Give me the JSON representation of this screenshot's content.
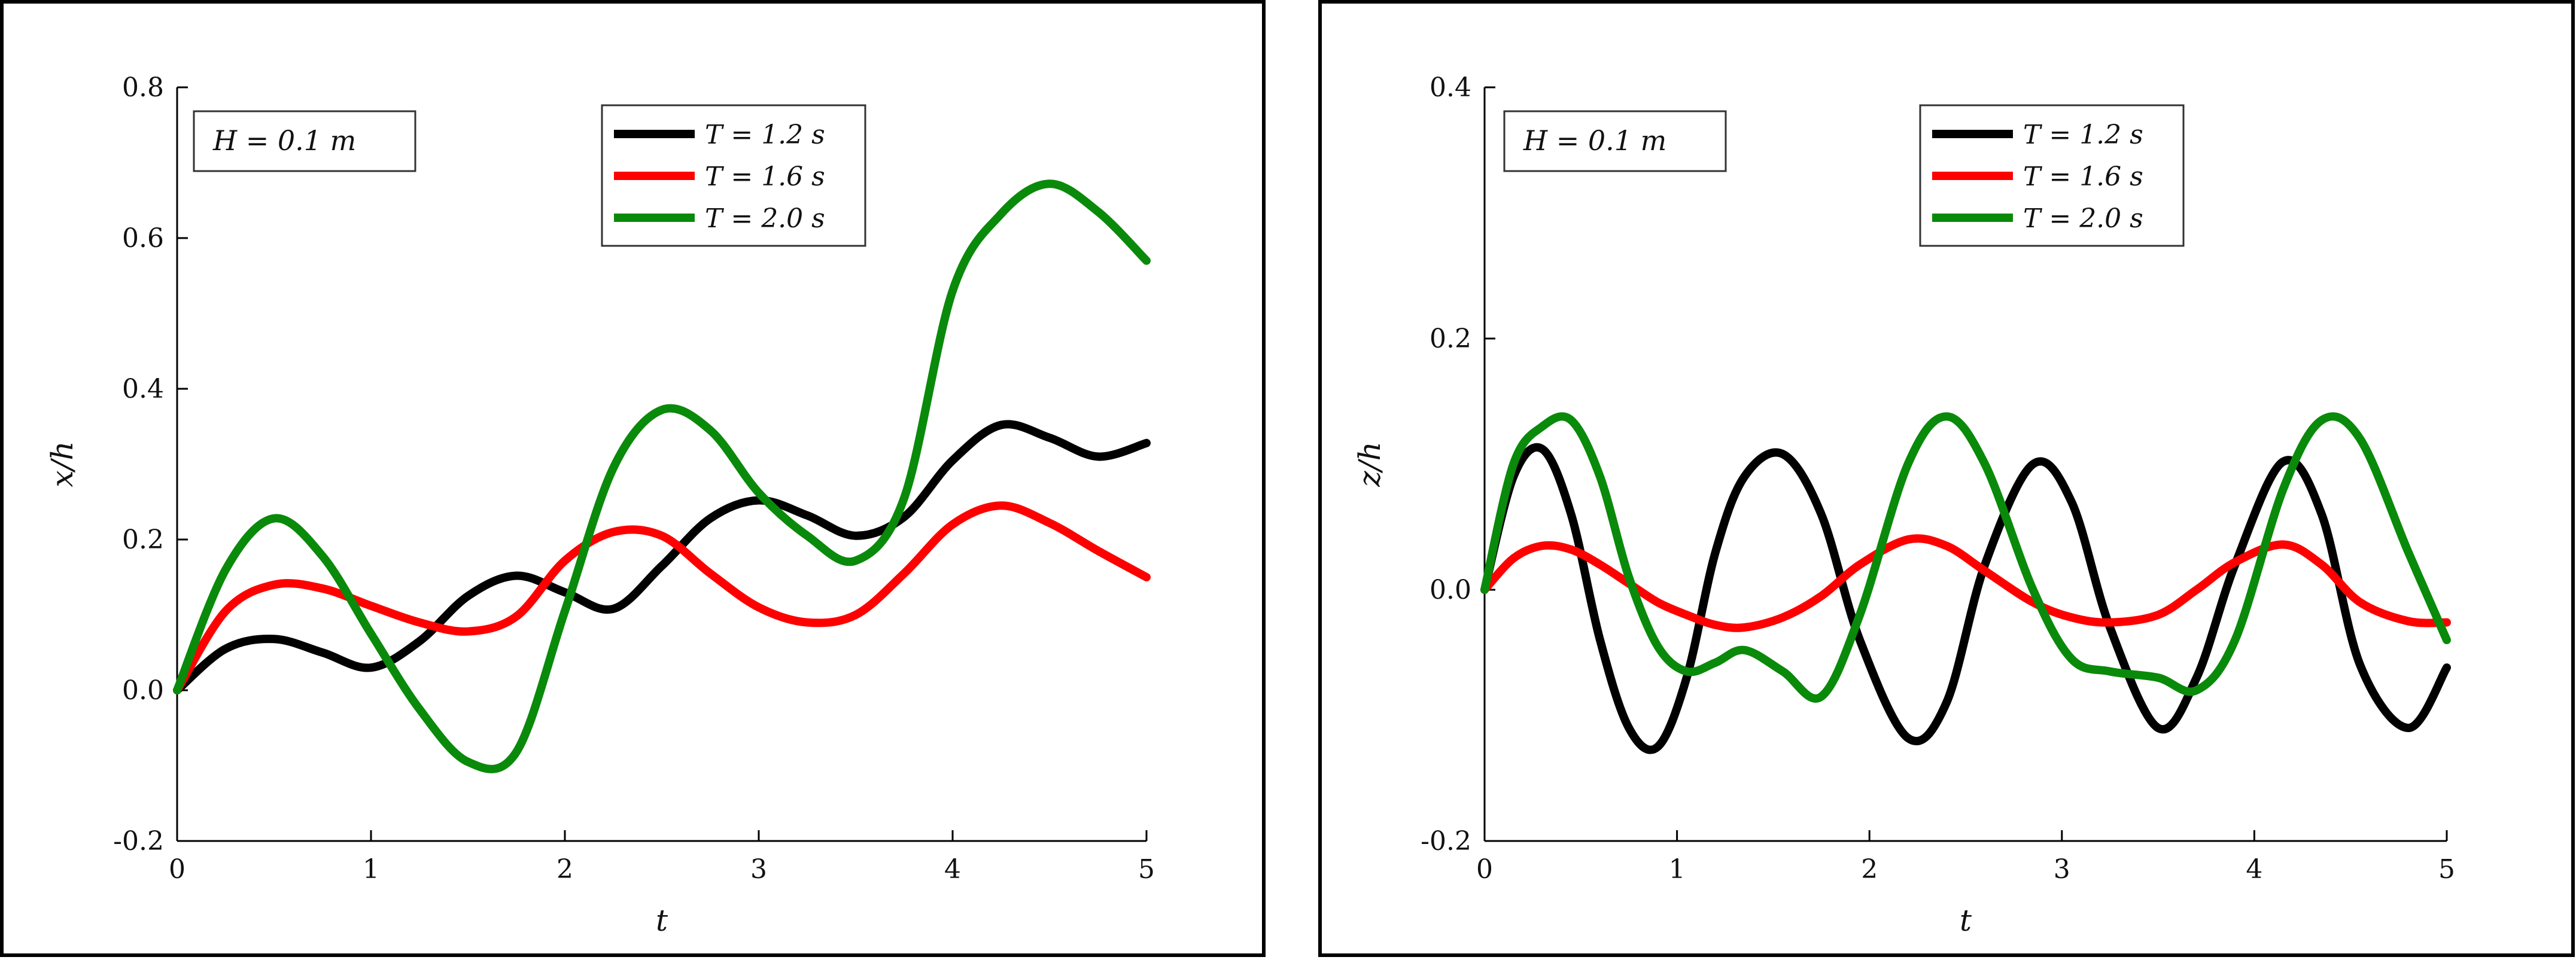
{
  "chart_data": [
    {
      "type": "line",
      "title": "",
      "xlabel": "t",
      "ylabel": "x/h",
      "xlim": [
        0,
        5
      ],
      "ylim": [
        -0.2,
        0.8
      ],
      "xticks": [
        "0",
        "1",
        "2",
        "3",
        "4",
        "5"
      ],
      "yticks": [
        "-0.2",
        "0.0",
        "0.2",
        "0.4",
        "0.6",
        "0.8"
      ],
      "grid": false,
      "legend_position": "top-center",
      "annotation": "H = 0.1 m",
      "x": [
        0,
        0.25,
        0.5,
        0.75,
        1.0,
        1.25,
        1.5,
        1.75,
        2.0,
        2.25,
        2.5,
        2.75,
        3.0,
        3.25,
        3.5,
        3.75,
        4.0,
        4.25,
        4.5,
        4.75,
        5.0
      ],
      "series": [
        {
          "name": "T = 1.2 s",
          "color": "#000000",
          "values": [
            0.0,
            0.055,
            0.068,
            0.05,
            0.03,
            0.065,
            0.125,
            0.152,
            0.13,
            0.108,
            0.165,
            0.228,
            0.252,
            0.232,
            0.205,
            0.23,
            0.305,
            0.352,
            0.335,
            0.31,
            0.328
          ]
        },
        {
          "name": "T = 1.6 s",
          "color": "#ff0000",
          "values": [
            0.0,
            0.105,
            0.14,
            0.135,
            0.112,
            0.09,
            0.078,
            0.098,
            0.172,
            0.21,
            0.205,
            0.155,
            0.11,
            0.09,
            0.1,
            0.155,
            0.22,
            0.245,
            0.222,
            0.185,
            0.15
          ]
        },
        {
          "name": "T = 2.0 s",
          "color": "#0a8a0a",
          "values": [
            0.0,
            0.16,
            0.228,
            0.178,
            0.075,
            -0.025,
            -0.095,
            -0.082,
            0.105,
            0.295,
            0.372,
            0.345,
            0.262,
            0.205,
            0.172,
            0.255,
            0.53,
            0.632,
            0.672,
            0.635,
            0.57
          ]
        }
      ]
    },
    {
      "type": "line",
      "title": "",
      "xlabel": "t",
      "ylabel": "z/h",
      "xlim": [
        0,
        5
      ],
      "ylim": [
        -0.2,
        0.4
      ],
      "xticks": [
        "0",
        "1",
        "2",
        "3",
        "4",
        "5"
      ],
      "yticks": [
        "-0.2",
        "0.0",
        "0.2",
        "0.4"
      ],
      "grid": false,
      "legend_position": "top-center",
      "annotation": "H = 0.1 m",
      "x": [
        0,
        0.15,
        0.3,
        0.45,
        0.6,
        0.75,
        0.9,
        1.05,
        1.2,
        1.35,
        1.55,
        1.75,
        1.95,
        2.2,
        2.4,
        2.6,
        2.85,
        3.05,
        3.25,
        3.5,
        3.7,
        3.9,
        4.15,
        4.35,
        4.55,
        4.8,
        5.0
      ],
      "series": [
        {
          "name": "T = 1.2 s",
          "color": "#000000",
          "values": [
            0.0,
            0.09,
            0.112,
            0.06,
            -0.04,
            -0.11,
            -0.125,
            -0.07,
            0.03,
            0.09,
            0.108,
            0.06,
            -0.04,
            -0.118,
            -0.09,
            0.02,
            0.1,
            0.07,
            -0.03,
            -0.11,
            -0.07,
            0.02,
            0.102,
            0.06,
            -0.06,
            -0.11,
            -0.062
          ]
        },
        {
          "name": "T = 1.6 s",
          "color": "#ff0000",
          "values": [
            0.0,
            0.025,
            0.035,
            0.032,
            0.02,
            0.005,
            -0.01,
            -0.02,
            -0.028,
            -0.03,
            -0.022,
            -0.005,
            0.02,
            0.04,
            0.035,
            0.015,
            -0.01,
            -0.022,
            -0.026,
            -0.02,
            0.0,
            0.022,
            0.036,
            0.02,
            -0.01,
            -0.025,
            -0.026
          ]
        },
        {
          "name": "T = 2.0 s",
          "color": "#0a8a0a",
          "values": [
            0.0,
            0.1,
            0.13,
            0.135,
            0.09,
            0.01,
            -0.045,
            -0.065,
            -0.058,
            -0.048,
            -0.065,
            -0.085,
            -0.02,
            0.1,
            0.138,
            0.1,
            0.0,
            -0.055,
            -0.065,
            -0.07,
            -0.08,
            -0.04,
            0.08,
            0.135,
            0.12,
            0.03,
            -0.04
          ]
        }
      ]
    }
  ]
}
